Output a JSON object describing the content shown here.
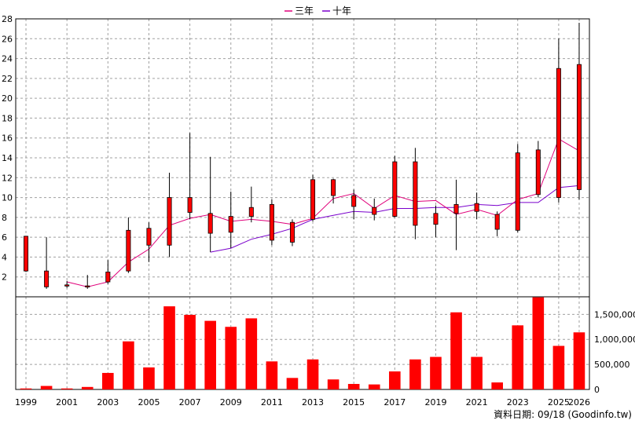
{
  "chart_data": {
    "type": "candlestick+bar",
    "legend": [
      {
        "name": "三年",
        "color": "#e0007a"
      },
      {
        "name": "十年",
        "color": "#7a00cc"
      }
    ],
    "years": [
      1999,
      2000,
      2001,
      2002,
      2003,
      2004,
      2005,
      2006,
      2007,
      2008,
      2009,
      2010,
      2011,
      2012,
      2013,
      2014,
      2015,
      2016,
      2017,
      2018,
      2019,
      2020,
      2021,
      2022,
      2023,
      2024,
      2025,
      2026
    ],
    "x_tick_labels": [
      "1999",
      "2001",
      "2003",
      "2005",
      "2007",
      "2009",
      "2011",
      "2013",
      "2015",
      "2017",
      "2019",
      "2021",
      "2023",
      "2025",
      "2026"
    ],
    "price_axis": {
      "min": 0,
      "max": 28,
      "ticks": [
        "2",
        "4",
        "6",
        "8",
        "10",
        "12",
        "14",
        "16",
        "18",
        "20",
        "22",
        "24",
        "26",
        "28"
      ]
    },
    "candles": [
      {
        "open": 2.6,
        "high": 6.1,
        "low": 2.5,
        "close": 6.1
      },
      {
        "open": 1.0,
        "high": 6.0,
        "low": 0.8,
        "close": 2.6
      },
      {
        "open": 1.2,
        "high": 1.6,
        "low": 0.9,
        "close": 1.2
      },
      {
        "open": 1.0,
        "high": 2.2,
        "low": 0.8,
        "close": 1.1
      },
      {
        "open": 1.5,
        "high": 3.7,
        "low": 1.3,
        "close": 2.5
      },
      {
        "open": 2.6,
        "high": 8.0,
        "low": 2.4,
        "close": 6.7
      },
      {
        "open": 5.2,
        "high": 7.5,
        "low": 3.5,
        "close": 6.9
      },
      {
        "open": 5.2,
        "high": 12.5,
        "low": 4.0,
        "close": 10.0
      },
      {
        "open": 8.5,
        "high": 16.5,
        "low": 7.8,
        "close": 10.0
      },
      {
        "open": 6.4,
        "high": 14.1,
        "low": 4.5,
        "close": 8.4
      },
      {
        "open": 6.5,
        "high": 10.6,
        "low": 4.9,
        "close": 8.1
      },
      {
        "open": 8.1,
        "high": 11.1,
        "low": 7.5,
        "close": 9.0
      },
      {
        "open": 5.7,
        "high": 9.8,
        "low": 5.2,
        "close": 9.3
      },
      {
        "open": 5.5,
        "high": 7.8,
        "low": 5.1,
        "close": 7.5
      },
      {
        "open": 7.8,
        "high": 12.3,
        "low": 7.6,
        "close": 11.8
      },
      {
        "open": 10.2,
        "high": 11.9,
        "low": 9.4,
        "close": 11.8
      },
      {
        "open": 9.1,
        "high": 10.8,
        "low": 7.8,
        "close": 10.2
      },
      {
        "open": 8.3,
        "high": 9.9,
        "low": 7.7,
        "close": 9.0
      },
      {
        "open": 8.1,
        "high": 14.2,
        "low": 8.0,
        "close": 13.6
      },
      {
        "open": 7.2,
        "high": 15.0,
        "low": 5.8,
        "close": 13.6
      },
      {
        "open": 7.3,
        "high": 9.2,
        "low": 6.0,
        "close": 8.4
      },
      {
        "open": 8.4,
        "high": 11.8,
        "low": 4.7,
        "close": 9.3
      },
      {
        "open": 8.6,
        "high": 10.5,
        "low": 7.8,
        "close": 9.4
      },
      {
        "open": 6.8,
        "high": 8.6,
        "low": 6.1,
        "close": 8.3
      },
      {
        "open": 6.7,
        "high": 15.4,
        "low": 6.5,
        "close": 14.5
      },
      {
        "open": 10.3,
        "high": 15.7,
        "low": 10.0,
        "close": 14.8
      },
      {
        "open": 10.0,
        "high": 26.0,
        "low": 9.5,
        "close": 23.0
      },
      {
        "open": 10.8,
        "high": 27.6,
        "low": 9.8,
        "close": 23.4
      }
    ],
    "ma3": [
      null,
      null,
      1.5,
      1.0,
      1.5,
      3.5,
      4.8,
      7.2,
      7.9,
      8.3,
      7.6,
      7.8,
      7.6,
      7.3,
      7.9,
      9.9,
      10.4,
      8.9,
      10.2,
      9.6,
      9.7,
      8.3,
      8.8,
      8.2,
      9.8,
      10.4,
      15.9,
      14.7
    ],
    "ma10": [
      null,
      null,
      null,
      null,
      null,
      null,
      null,
      null,
      null,
      4.5,
      4.9,
      5.8,
      6.3,
      6.9,
      7.8,
      8.2,
      8.6,
      8.5,
      8.9,
      8.9,
      9.0,
      9.0,
      9.3,
      9.2,
      9.5,
      9.5,
      11.0,
      11.2
    ],
    "volume_axis": {
      "min": 0,
      "max": 1850000,
      "ticks": [
        "0",
        "500,000",
        "1,000,000",
        "1,500,000"
      ]
    },
    "volume": [
      20000,
      70000,
      20000,
      50000,
      330000,
      960000,
      440000,
      1660000,
      1490000,
      1370000,
      1250000,
      1420000,
      560000,
      230000,
      600000,
      200000,
      110000,
      100000,
      360000,
      600000,
      650000,
      1540000,
      650000,
      140000,
      1280000,
      1840000,
      870000,
      1140000
    ],
    "colors": {
      "up": "#ff0000",
      "down": "#00dd00",
      "volume": "#ff0000",
      "ma3": "#e0007a",
      "ma10": "#7a00cc"
    }
  },
  "footer": "資料日期: 09/18  (Goodinfo.tw)"
}
